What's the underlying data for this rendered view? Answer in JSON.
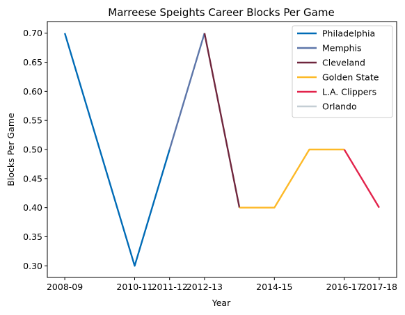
{
  "chart_data": {
    "type": "line",
    "title": "Marreese Speights Career Blocks Per Game",
    "xlabel": "Year",
    "ylabel": "Blocks Per Game",
    "x_tick_labels": [
      "2008-09",
      "2010-11",
      "2011-12",
      "2012-13",
      "2014-15",
      "2016-17",
      "2017-18"
    ],
    "x_tick_positions": [
      0,
      2,
      3,
      4,
      6,
      8,
      9
    ],
    "x_range": [
      -0.5,
      9.5
    ],
    "y_ticks": [
      0.3,
      0.35,
      0.4,
      0.45,
      0.5,
      0.55,
      0.6,
      0.65,
      0.7
    ],
    "ylim": [
      0.28,
      0.72
    ],
    "grid": false,
    "legend_position": "top-right",
    "series": [
      {
        "name": "Philadelphia",
        "color": "#006BB6",
        "points": [
          [
            0,
            0.7
          ],
          [
            2,
            0.3
          ],
          [
            3,
            0.5
          ]
        ]
      },
      {
        "name": "Memphis",
        "color": "#5D76A9",
        "points": [
          [
            3,
            0.5
          ],
          [
            4,
            0.7
          ]
        ]
      },
      {
        "name": "Cleveland",
        "color": "#6F263D",
        "points": [
          [
            4,
            0.7
          ],
          [
            5,
            0.4
          ]
        ]
      },
      {
        "name": "Golden State",
        "color": "#FDB927",
        "points": [
          [
            5,
            0.4
          ],
          [
            6,
            0.4
          ],
          [
            7,
            0.5
          ],
          [
            8,
            0.5
          ]
        ]
      },
      {
        "name": "L.A. Clippers",
        "color": "#E2234B",
        "points": [
          [
            8,
            0.5
          ],
          [
            9,
            0.4
          ]
        ]
      },
      {
        "name": "Orlando",
        "color": "#C4CED4",
        "points": []
      }
    ]
  }
}
